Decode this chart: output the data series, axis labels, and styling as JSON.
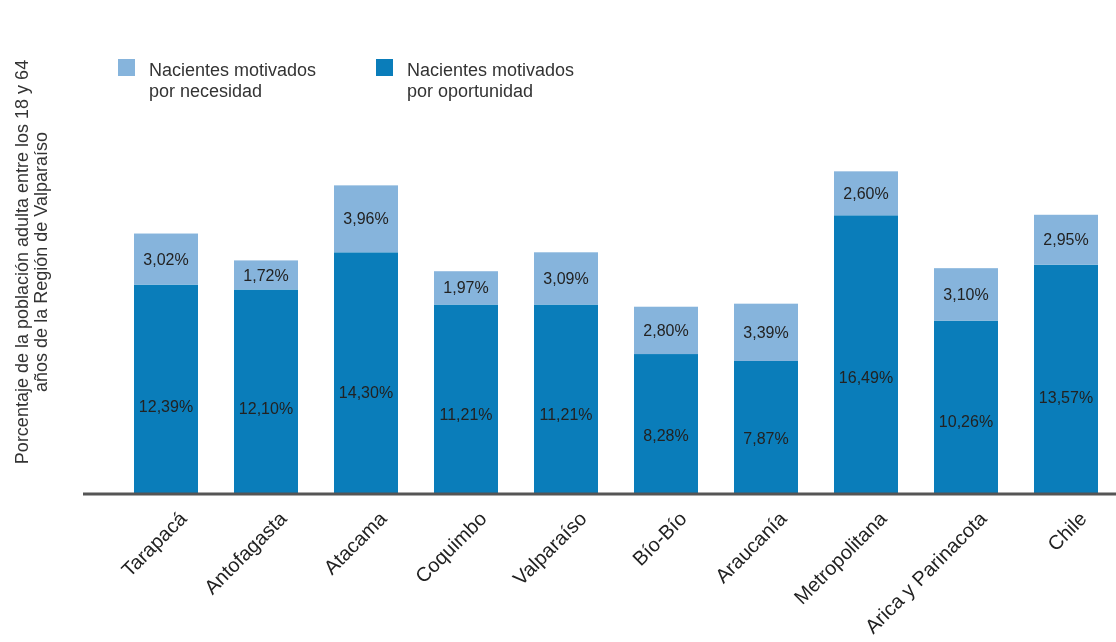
{
  "chart_data": {
    "type": "bar",
    "stacked": true,
    "ylabel": "Porcentaje de la población adulta entre los 18 y 64\naños de la Región de Valparaíso",
    "categories": [
      "Tarapacá",
      "Antofagasta",
      "Atacama",
      "Coquimbo",
      "Valparaíso",
      "Bío-Bío",
      "Araucanía",
      "Metropolitana",
      "Arica y Parinacota",
      "Chile"
    ],
    "series": [
      {
        "name": "Nacientes motivados por oportunidad",
        "color": "#0a7dba",
        "values": [
          12.39,
          12.1,
          14.3,
          11.21,
          11.21,
          8.28,
          7.87,
          16.49,
          10.26,
          13.57
        ],
        "value_labels": [
          "12,39%",
          "12,10%",
          "14,30%",
          "11,21%",
          "11,21%",
          "8,28%",
          "7,87%",
          "16,49%",
          "10,26%",
          "13,57%"
        ]
      },
      {
        "name": "Nacientes motivados por necesidad",
        "color": "#86b4dc",
        "values": [
          3.02,
          1.72,
          3.96,
          1.97,
          3.09,
          2.8,
          3.39,
          2.6,
          3.1,
          2.95
        ],
        "value_labels": [
          "3,02%",
          "1,72%",
          "3,96%",
          "1,97%",
          "3,09%",
          "2,80%",
          "3,39%",
          "2,60%",
          "3,10%",
          "2,95%"
        ]
      }
    ],
    "legend": "top left"
  }
}
